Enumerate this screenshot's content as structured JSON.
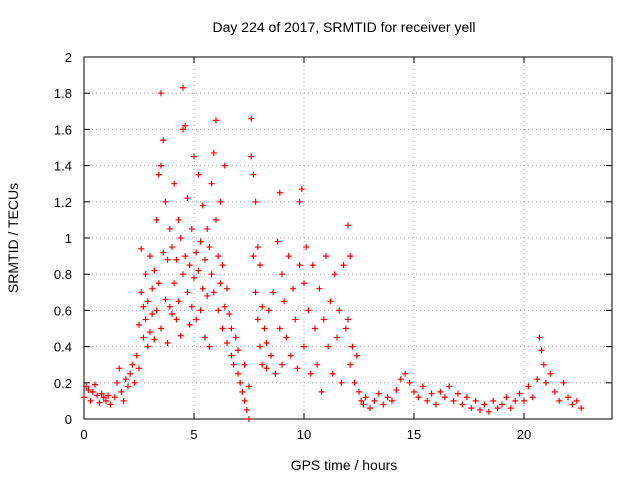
{
  "chart_data": {
    "type": "scatter",
    "title": "Day 224 of 2017, SRMTID for receiver yell",
    "xlabel": "GPS time / hours",
    "ylabel": "SRMTID / TECUs",
    "xlim": [
      0,
      24
    ],
    "ylim": [
      0,
      2
    ],
    "xticks": [
      0,
      5,
      10,
      15,
      20
    ],
    "xtick_labels": [
      "0",
      "5",
      "10",
      "15",
      "20"
    ],
    "yticks": [
      0,
      0.2,
      0.4,
      0.6,
      0.8,
      1,
      1.2,
      1.4,
      1.6,
      1.8,
      2
    ],
    "ytick_labels": [
      "0",
      "0.2",
      "0.4",
      "0.6",
      "0.8",
      "1",
      "1.2",
      "1.4",
      "1.6",
      "1.8",
      "2"
    ],
    "grid": true,
    "marker": "+",
    "color": "#ff0000",
    "series": [
      {
        "name": "SRMTID",
        "points": [
          [
            0.0,
            0.12
          ],
          [
            0.1,
            0.18
          ],
          [
            0.2,
            0.16
          ],
          [
            0.3,
            0.1
          ],
          [
            0.4,
            0.15
          ],
          [
            0.5,
            0.19
          ],
          [
            0.6,
            0.13
          ],
          [
            0.7,
            0.09
          ],
          [
            0.8,
            0.14
          ],
          [
            0.9,
            0.12
          ],
          [
            1.0,
            0.1
          ],
          [
            1.1,
            0.13
          ],
          [
            1.2,
            0.08
          ],
          [
            1.4,
            0.12
          ],
          [
            1.5,
            0.2
          ],
          [
            1.6,
            0.28
          ],
          [
            1.7,
            0.15
          ],
          [
            1.8,
            0.1
          ],
          [
            1.9,
            0.22
          ],
          [
            2.0,
            0.18
          ],
          [
            2.1,
            0.25
          ],
          [
            2.2,
            0.3
          ],
          [
            2.3,
            0.2
          ],
          [
            2.4,
            0.35
          ],
          [
            2.5,
            0.28
          ],
          [
            2.5,
            0.52
          ],
          [
            2.6,
            0.7
          ],
          [
            2.6,
            0.94
          ],
          [
            2.7,
            0.62
          ],
          [
            2.7,
            0.45
          ],
          [
            2.8,
            0.8
          ],
          [
            2.8,
            0.55
          ],
          [
            2.9,
            0.4
          ],
          [
            2.9,
            0.65
          ],
          [
            3.0,
            0.9
          ],
          [
            3.0,
            0.48
          ],
          [
            3.1,
            0.72
          ],
          [
            3.1,
            0.58
          ],
          [
            3.2,
            0.82
          ],
          [
            3.2,
            0.44
          ],
          [
            3.3,
            1.1
          ],
          [
            3.3,
            0.6
          ],
          [
            3.4,
            1.35
          ],
          [
            3.4,
            0.75
          ],
          [
            3.5,
            1.4
          ],
          [
            3.5,
            1.8
          ],
          [
            3.5,
            0.5
          ],
          [
            3.6,
            1.54
          ],
          [
            3.6,
            0.92
          ],
          [
            3.7,
            0.66
          ],
          [
            3.7,
            1.2
          ],
          [
            3.8,
            0.88
          ],
          [
            3.8,
            0.42
          ],
          [
            3.9,
            1.05
          ],
          [
            3.9,
            0.62
          ],
          [
            4.0,
            0.95
          ],
          [
            4.0,
            0.58
          ],
          [
            4.1,
            1.3
          ],
          [
            4.1,
            0.75
          ],
          [
            4.2,
            0.55
          ],
          [
            4.2,
            0.88
          ],
          [
            4.3,
            1.1
          ],
          [
            4.3,
            0.65
          ],
          [
            4.4,
            1.0
          ],
          [
            4.4,
            0.46
          ],
          [
            4.5,
            1.6
          ],
          [
            4.5,
            1.83
          ],
          [
            4.5,
            0.8
          ],
          [
            4.6,
            1.62
          ],
          [
            4.6,
            0.9
          ],
          [
            4.7,
            0.7
          ],
          [
            4.7,
            1.22
          ],
          [
            4.8,
            0.85
          ],
          [
            4.8,
            0.52
          ],
          [
            4.9,
            1.05
          ],
          [
            4.9,
            0.62
          ],
          [
            5.0,
            1.45
          ],
          [
            5.0,
            0.78
          ],
          [
            5.1,
            0.92
          ],
          [
            5.1,
            0.55
          ],
          [
            5.2,
            1.35
          ],
          [
            5.2,
            0.82
          ],
          [
            5.3,
            0.98
          ],
          [
            5.3,
            0.6
          ],
          [
            5.4,
            1.18
          ],
          [
            5.4,
            0.72
          ],
          [
            5.5,
            0.88
          ],
          [
            5.5,
            0.45
          ],
          [
            5.6,
            1.05
          ],
          [
            5.6,
            0.68
          ],
          [
            5.7,
            0.95
          ],
          [
            5.7,
            0.4
          ],
          [
            5.8,
            1.3
          ],
          [
            5.8,
            0.8
          ],
          [
            5.9,
            1.47
          ],
          [
            5.9,
            0.7
          ],
          [
            6.0,
            1.65
          ],
          [
            6.0,
            1.1
          ],
          [
            6.1,
            0.9
          ],
          [
            6.1,
            0.6
          ],
          [
            6.2,
            1.2
          ],
          [
            6.2,
            0.75
          ],
          [
            6.3,
            0.85
          ],
          [
            6.3,
            0.5
          ],
          [
            6.4,
            1.4
          ],
          [
            6.4,
            0.62
          ],
          [
            6.5,
            0.72
          ],
          [
            6.5,
            0.42
          ],
          [
            6.6,
            0.58
          ],
          [
            6.7,
            0.35
          ],
          [
            6.7,
            0.5
          ],
          [
            6.8,
            0.3
          ],
          [
            6.9,
            0.45
          ],
          [
            7.0,
            0.38
          ],
          [
            7.0,
            0.25
          ],
          [
            7.1,
            0.2
          ],
          [
            7.2,
            0.15
          ],
          [
            7.3,
            0.1
          ],
          [
            7.3,
            0.3
          ],
          [
            7.4,
            0.05
          ],
          [
            7.5,
            0.0
          ],
          [
            7.5,
            0.18
          ],
          [
            7.6,
            1.66
          ],
          [
            7.6,
            1.45
          ],
          [
            7.7,
            1.35
          ],
          [
            7.7,
            0.9
          ],
          [
            7.8,
            1.2
          ],
          [
            7.8,
            0.7
          ],
          [
            7.9,
            0.95
          ],
          [
            7.9,
            0.55
          ],
          [
            8.0,
            0.85
          ],
          [
            8.0,
            0.4
          ],
          [
            8.1,
            0.62
          ],
          [
            8.1,
            0.3
          ],
          [
            8.2,
            0.5
          ],
          [
            8.3,
            0.42
          ],
          [
            8.3,
            0.28
          ],
          [
            8.4,
            0.6
          ],
          [
            8.5,
            0.35
          ],
          [
            8.6,
            0.7
          ],
          [
            8.7,
            0.25
          ],
          [
            8.8,
            0.98
          ],
          [
            8.9,
            1.25
          ],
          [
            8.9,
            0.5
          ],
          [
            9.0,
            0.8
          ],
          [
            9.0,
            0.3
          ],
          [
            9.1,
            0.65
          ],
          [
            9.2,
            0.45
          ],
          [
            9.3,
            0.9
          ],
          [
            9.4,
            0.35
          ],
          [
            9.5,
            0.72
          ],
          [
            9.6,
            0.55
          ],
          [
            9.7,
            0.28
          ],
          [
            9.8,
            1.2
          ],
          [
            9.8,
            0.85
          ],
          [
            9.9,
            1.27
          ],
          [
            10.0,
            0.75
          ],
          [
            10.0,
            0.4
          ],
          [
            10.1,
            0.95
          ],
          [
            10.2,
            0.6
          ],
          [
            10.3,
            0.25
          ],
          [
            10.4,
            0.85
          ],
          [
            10.5,
            0.5
          ],
          [
            10.6,
            0.3
          ],
          [
            10.7,
            0.72
          ],
          [
            10.8,
            0.15
          ],
          [
            10.9,
            0.55
          ],
          [
            11.0,
            0.9
          ],
          [
            11.1,
            0.4
          ],
          [
            11.2,
            0.65
          ],
          [
            11.3,
            0.25
          ],
          [
            11.4,
            0.8
          ],
          [
            11.5,
            0.45
          ],
          [
            11.6,
            0.6
          ],
          [
            11.7,
            0.2
          ],
          [
            11.8,
            0.85
          ],
          [
            11.9,
            0.5
          ],
          [
            12.0,
            1.07
          ],
          [
            12.0,
            0.55
          ],
          [
            12.1,
            0.9
          ],
          [
            12.1,
            0.3
          ],
          [
            12.2,
            0.4
          ],
          [
            12.3,
            0.2
          ],
          [
            12.4,
            0.35
          ],
          [
            12.5,
            0.15
          ],
          [
            12.6,
            0.1
          ],
          [
            12.7,
            0.08
          ],
          [
            12.8,
            0.12
          ],
          [
            13.0,
            0.06
          ],
          [
            13.2,
            0.1
          ],
          [
            13.4,
            0.14
          ],
          [
            13.6,
            0.08
          ],
          [
            13.8,
            0.12
          ],
          [
            14.0,
            0.1
          ],
          [
            14.2,
            0.16
          ],
          [
            14.4,
            0.22
          ],
          [
            14.6,
            0.25
          ],
          [
            14.8,
            0.2
          ],
          [
            15.0,
            0.15
          ],
          [
            15.2,
            0.12
          ],
          [
            15.4,
            0.18
          ],
          [
            15.6,
            0.1
          ],
          [
            15.8,
            0.14
          ],
          [
            16.0,
            0.08
          ],
          [
            16.2,
            0.15
          ],
          [
            16.4,
            0.12
          ],
          [
            16.6,
            0.18
          ],
          [
            16.8,
            0.1
          ],
          [
            17.0,
            0.14
          ],
          [
            17.2,
            0.08
          ],
          [
            17.4,
            0.12
          ],
          [
            17.6,
            0.06
          ],
          [
            17.8,
            0.1
          ],
          [
            18.0,
            0.05
          ],
          [
            18.2,
            0.08
          ],
          [
            18.4,
            0.04
          ],
          [
            18.6,
            0.1
          ],
          [
            18.8,
            0.06
          ],
          [
            19.0,
            0.08
          ],
          [
            19.2,
            0.12
          ],
          [
            19.4,
            0.06
          ],
          [
            19.6,
            0.1
          ],
          [
            19.8,
            0.14
          ],
          [
            20.0,
            0.1
          ],
          [
            20.2,
            0.18
          ],
          [
            20.4,
            0.12
          ],
          [
            20.6,
            0.22
          ],
          [
            20.7,
            0.45
          ],
          [
            20.8,
            0.38
          ],
          [
            20.9,
            0.3
          ],
          [
            21.0,
            0.2
          ],
          [
            21.2,
            0.25
          ],
          [
            21.4,
            0.15
          ],
          [
            21.6,
            0.1
          ],
          [
            21.8,
            0.2
          ],
          [
            22.0,
            0.12
          ],
          [
            22.2,
            0.08
          ],
          [
            22.4,
            0.1
          ],
          [
            22.6,
            0.06
          ]
        ]
      }
    ]
  }
}
